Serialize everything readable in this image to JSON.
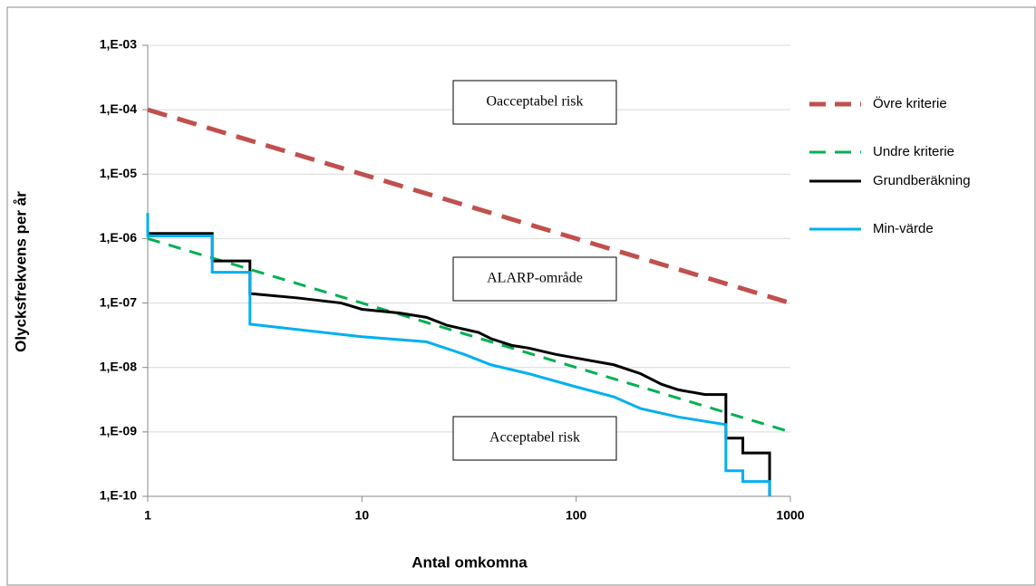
{
  "chart_data": {
    "type": "line",
    "log_x": true,
    "log_y": true,
    "grid": true,
    "legend": "right",
    "x_label": "Antal omkomna",
    "y_label": "Olycksfrekvens per år",
    "xlim": [
      1,
      1000
    ],
    "xticks": [
      1,
      10,
      100,
      1000
    ],
    "ylim": [
      1e-10,
      0.001
    ],
    "yticks": [
      {
        "value": 1e-10,
        "label": "1,E-10"
      },
      {
        "value": 1e-09,
        "label": "1,E-09"
      },
      {
        "value": 1e-08,
        "label": "1,E-08"
      },
      {
        "value": 1e-07,
        "label": "1,E-07"
      },
      {
        "value": 1e-06,
        "label": "1,E-06"
      },
      {
        "value": 1e-05,
        "label": "1,E-05"
      },
      {
        "value": 0.0001,
        "label": "1,E-04"
      },
      {
        "value": 0.001,
        "label": "1,E-03"
      }
    ],
    "annotations": [
      "Oacceptabel risk",
      "ALARP-område",
      "Acceptabel risk"
    ],
    "series": [
      {
        "name": "Övre kriterie",
        "color": "#c0504d",
        "dashed": true,
        "x": [
          1,
          1000
        ],
        "values": [
          0.0001,
          1e-07
        ]
      },
      {
        "name": "Undre kriterie",
        "color": "#00b050",
        "dashed": true,
        "x": [
          1,
          1000
        ],
        "values": [
          1e-06,
          1e-09
        ]
      },
      {
        "name": "Grundberäkning",
        "color": "#000000",
        "dashed": false,
        "x": [
          1,
          2,
          2,
          3,
          3,
          5,
          8,
          10,
          15,
          20,
          25,
          35,
          40,
          50,
          60,
          80,
          100,
          150,
          200,
          250,
          300,
          400,
          500,
          500,
          600,
          600,
          800,
          800
        ],
        "values": [
          1.2e-06,
          1.2e-06,
          4.5e-07,
          4.5e-07,
          1.4e-07,
          1.2e-07,
          1e-07,
          8e-08,
          7e-08,
          6e-08,
          4.5e-08,
          3.5e-08,
          2.8e-08,
          2.2e-08,
          2e-08,
          1.6e-08,
          1.4e-08,
          1.1e-08,
          8e-09,
          5.5e-09,
          4.5e-09,
          3.8e-09,
          3.8e-09,
          8e-10,
          8e-10,
          4.7e-10,
          4.7e-10,
          1e-10
        ]
      },
      {
        "name": "Min-värde",
        "color": "#00b0f0",
        "dashed": false,
        "x": [
          1,
          1,
          2,
          2,
          3,
          3,
          10,
          20,
          30,
          40,
          60,
          100,
          150,
          200,
          300,
          500,
          500,
          600,
          600,
          800,
          800
        ],
        "values": [
          2.5e-06,
          1.1e-06,
          1.1e-06,
          3e-07,
          3e-07,
          4.7e-08,
          3e-08,
          2.5e-08,
          1.6e-08,
          1.1e-08,
          8e-09,
          5e-09,
          3.5e-09,
          2.3e-09,
          1.7e-09,
          1.3e-09,
          2.5e-10,
          2.5e-10,
          1.7e-10,
          1.7e-10,
          1e-10
        ]
      }
    ]
  }
}
